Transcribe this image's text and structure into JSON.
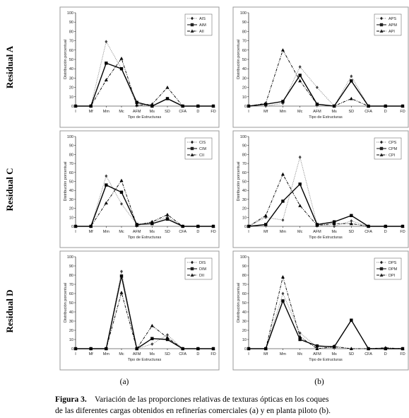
{
  "row_labels": [
    "Residual A",
    "Residual C",
    "Residual D"
  ],
  "panel_labels": [
    "(a)",
    "(b)"
  ],
  "caption": {
    "label": "Figura 3.",
    "lines": [
      "Variación de las proporciones relativas de texturas ópticas en los coques",
      "de las diferentes cargas obtenidos en  refinerías comerciales (a) y en planta piloto (b)."
    ]
  },
  "chart_data": [
    {
      "type": "line",
      "x_label": "Tipo de Estructuras",
      "y_label": "Distribución porcentual",
      "categories": [
        "I",
        "Mf",
        "Mm",
        "Mc",
        "AFM",
        "Ms",
        "SD",
        "CFA",
        "D",
        "FD"
      ],
      "ylim": [
        0,
        100
      ],
      "yticks": [
        0,
        10,
        20,
        30,
        40,
        50,
        60,
        70,
        80,
        90,
        100
      ],
      "legend": "upper right",
      "series": [
        {
          "name": "AIS",
          "color": "#888888",
          "dash": "dotted",
          "marker": "diamond",
          "values": [
            0,
            0,
            69,
            40,
            1,
            0,
            8,
            0,
            0,
            0
          ]
        },
        {
          "name": "AIM",
          "color": "#000000",
          "dash": "solid",
          "marker": "square",
          "values": [
            0,
            0,
            46,
            40,
            4,
            0,
            8,
            0,
            0,
            0
          ]
        },
        {
          "name": "AII",
          "color": "#000000",
          "dash": "dashdot",
          "marker": "triangle",
          "values": [
            0,
            0,
            28,
            51,
            1,
            2,
            20,
            0,
            0,
            0
          ]
        }
      ]
    },
    {
      "type": "line",
      "x_label": "Tipo de Estructuras",
      "y_label": "Distribución porcentual",
      "categories": [
        "I",
        "Mf",
        "Mm",
        "Mc",
        "AFM",
        "Ms",
        "SD",
        "CFA",
        "D",
        "FD"
      ],
      "ylim": [
        0,
        100
      ],
      "yticks": [
        0,
        10,
        20,
        30,
        40,
        50,
        60,
        70,
        80,
        90,
        100
      ],
      "legend": "upper right",
      "series": [
        {
          "name": "APS",
          "color": "#888888",
          "dash": "dotted",
          "marker": "diamond",
          "values": [
            0,
            0,
            3,
            42,
            20,
            0,
            32,
            0,
            0,
            0
          ]
        },
        {
          "name": "APM",
          "color": "#000000",
          "dash": "solid",
          "marker": "square",
          "values": [
            0,
            2,
            5,
            33,
            2,
            0,
            27,
            0,
            0,
            0
          ]
        },
        {
          "name": "API",
          "color": "#000000",
          "dash": "dashdot",
          "marker": "triangle",
          "values": [
            0,
            3,
            60,
            27,
            2,
            0,
            8,
            0,
            0,
            0
          ]
        }
      ]
    },
    {
      "type": "line",
      "x_label": "Tipo de Estructuras",
      "y_label": "Distribución porcentual",
      "categories": [
        "I",
        "Mf",
        "Mm",
        "Mc",
        "AFM",
        "Ms",
        "SD",
        "CFA",
        "D",
        "FD"
      ],
      "ylim": [
        0,
        100
      ],
      "yticks": [
        0,
        10,
        20,
        30,
        40,
        50,
        60,
        70,
        80,
        90,
        100
      ],
      "legend": "upper right",
      "series": [
        {
          "name": "CIS",
          "color": "#888888",
          "dash": "dotted",
          "marker": "diamond",
          "values": [
            0,
            0,
            56,
            25,
            2,
            5,
            10,
            0,
            0,
            0
          ]
        },
        {
          "name": "CIM",
          "color": "#000000",
          "dash": "solid",
          "marker": "square",
          "values": [
            0,
            0,
            46,
            38,
            2,
            3,
            8,
            0,
            0,
            0
          ]
        },
        {
          "name": "CII",
          "color": "#000000",
          "dash": "dashdot",
          "marker": "triangle",
          "values": [
            0,
            0,
            26,
            51,
            1,
            5,
            13,
            0,
            0,
            0
          ]
        }
      ]
    },
    {
      "type": "line",
      "x_label": "Tipo de Estructuras",
      "y_label": "Distribución porcentual",
      "categories": [
        "I",
        "Mf",
        "Mm",
        "Mc",
        "AFM",
        "Ms",
        "SD",
        "CFA",
        "D",
        "FD"
      ],
      "ylim": [
        0,
        100
      ],
      "yticks": [
        0,
        10,
        20,
        30,
        40,
        50,
        60,
        70,
        80,
        90,
        100
      ],
      "legend": "upper right",
      "series": [
        {
          "name": "CPS",
          "color": "#888888",
          "dash": "dotted",
          "marker": "diamond",
          "values": [
            0,
            10,
            7,
            77,
            2,
            0,
            6,
            0,
            0,
            0
          ]
        },
        {
          "name": "CPM",
          "color": "#000000",
          "dash": "solid",
          "marker": "square",
          "values": [
            0,
            2,
            28,
            47,
            2,
            5,
            12,
            0,
            0,
            0
          ]
        },
        {
          "name": "CPI",
          "color": "#000000",
          "dash": "dashdot",
          "marker": "triangle",
          "values": [
            0,
            12,
            58,
            23,
            1,
            3,
            3,
            0,
            0,
            0
          ]
        }
      ]
    },
    {
      "type": "line",
      "x_label": "Tipo de Estructuras",
      "y_label": "Distribución porcentual",
      "categories": [
        "I",
        "Mf",
        "Mm",
        "Mc",
        "AFM",
        "Ms",
        "SD",
        "CFA",
        "D",
        "FD"
      ],
      "ylim": [
        0,
        100
      ],
      "yticks": [
        0,
        10,
        20,
        30,
        40,
        50,
        60,
        70,
        80,
        90,
        100
      ],
      "legend": "upper right",
      "series": [
        {
          "name": "DIS",
          "color": "#888888",
          "dash": "dotted",
          "marker": "diamond",
          "values": [
            0,
            0,
            0,
            84,
            0,
            5,
            15,
            0,
            0,
            0
          ]
        },
        {
          "name": "DIM",
          "color": "#000000",
          "dash": "solid",
          "marker": "square",
          "values": [
            0,
            0,
            0,
            79,
            0,
            11,
            10,
            0,
            0,
            0
          ]
        },
        {
          "name": "DII",
          "color": "#000000",
          "dash": "dashdot",
          "marker": "triangle",
          "values": [
            0,
            0,
            0,
            61,
            0,
            25,
            12,
            0,
            0,
            0
          ]
        }
      ]
    },
    {
      "type": "line",
      "x_label": "Tipo de Estructuras",
      "y_label": "Distribución porcentual",
      "categories": [
        "I",
        "Mf",
        "Mm",
        "Mc",
        "AFM",
        "Ms",
        "SD",
        "CFA",
        "D",
        "FD"
      ],
      "ylim": [
        0,
        100
      ],
      "yticks": [
        0,
        10,
        20,
        30,
        40,
        50,
        60,
        70,
        80,
        90,
        100
      ],
      "legend": "upper right",
      "series": [
        {
          "name": "DPS",
          "color": "#888888",
          "dash": "dotted",
          "marker": "diamond",
          "values": [
            0,
            0,
            60,
            17,
            2,
            3,
            0,
            0,
            0,
            0
          ]
        },
        {
          "name": "DPM",
          "color": "#000000",
          "dash": "solid",
          "marker": "square",
          "values": [
            0,
            0,
            52,
            10,
            3,
            2,
            31,
            0,
            0,
            0
          ]
        },
        {
          "name": "DPI",
          "color": "#000000",
          "dash": "dashdot",
          "marker": "triangle",
          "values": [
            0,
            0,
            78,
            13,
            0,
            2,
            0,
            0,
            1,
            0
          ]
        }
      ]
    }
  ]
}
